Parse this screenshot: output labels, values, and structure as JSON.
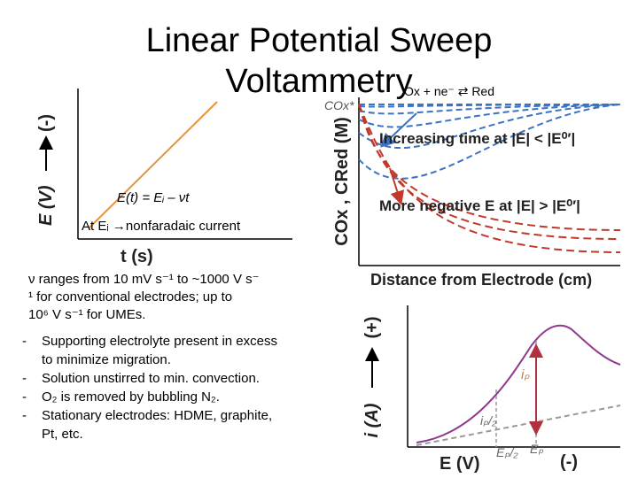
{
  "title": [
    "Linear Potential Sweep",
    "Voltammetry"
  ],
  "reaction": "Ox + ne⁻ ⇄ Red",
  "potential_plot": {
    "y_label": "E (V)",
    "y_direction": "(-)",
    "x_label": "t (s)",
    "equation": "E(t) = Eᵢ – νt",
    "note": "At Eᵢ →nonfaradaic current"
  },
  "scan_rate_text": [
    "ν ranges from 10 mV s⁻¹ to ~1000 V s⁻",
    "¹ for conventional electrodes; up to",
    "10⁶  V s⁻¹ for UMEs."
  ],
  "bullets": [
    [
      "Supporting electrolyte present in excess",
      "to minimize migration."
    ],
    [
      "Solution unstirred to min. convection."
    ],
    [
      "O₂ is removed by bubbling N₂."
    ],
    [
      "Stationary electrodes: HDME, graphite,",
      "Pt, etc."
    ]
  ],
  "concentration_plot": {
    "y_label": "COx , CRed (M)",
    "bulk_label": "COx*",
    "blue_label": "Increasing time at |E| < |E⁰′|",
    "red_label": "More negative E at |E| > |E⁰′|",
    "x_label": "Distance from Electrode (cm)"
  },
  "voltammogram": {
    "y_label": "i (A)",
    "y_direction": "(+)",
    "x_label": "E (V)",
    "x_direction": "(-)",
    "peak_current": "iₚ",
    "half_current": "iₚ/₂",
    "half_potential": "Eₚ/₂",
    "peak_potential": "Eₚ"
  }
}
